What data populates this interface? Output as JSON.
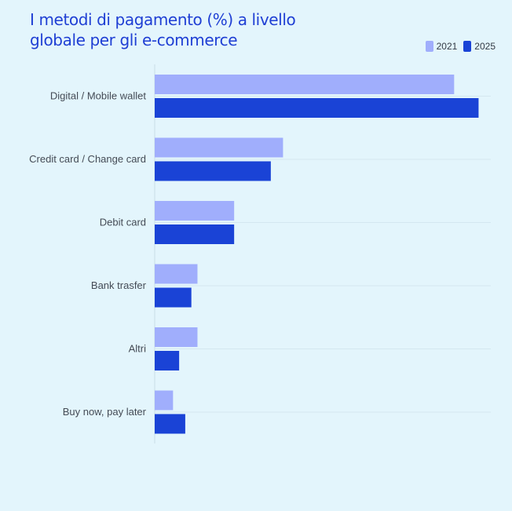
{
  "title": "I metodi di pagamento (%) a livello globale per gli e-commerce",
  "colors": {
    "2021": "#a0aefc",
    "2025": "#1a43d6",
    "gridline": "#d4e7f0",
    "axis": "#c9dde6"
  },
  "chart_data": {
    "type": "bar",
    "orientation": "horizontal",
    "title": "I metodi di pagamento (%) a livello globale per gli e-commerce",
    "legend_position": "top-right",
    "grid": true,
    "xlim": [
      0,
      55
    ],
    "categories": [
      "Digital / Mobile wallet",
      "Credit card / Change card",
      "Debit card",
      "Bank trasfer",
      "Altri",
      "Buy now, pay later"
    ],
    "series": [
      {
        "name": "2021",
        "values": [
          49,
          21,
          13,
          7,
          7,
          3
        ]
      },
      {
        "name": "2025",
        "values": [
          53,
          19,
          13,
          6,
          4,
          5
        ]
      }
    ]
  }
}
